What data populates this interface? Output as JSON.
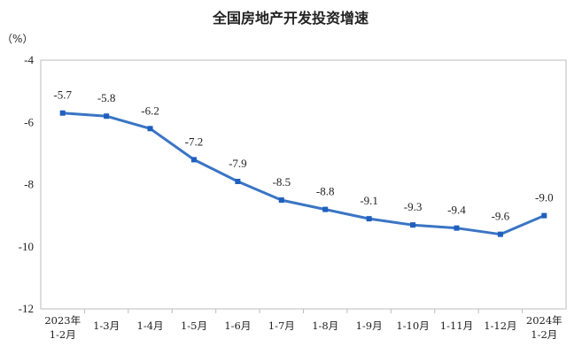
{
  "chart_data": {
    "type": "line",
    "title": "全国房地产开发投资增速",
    "unit_label": "（%）",
    "categories": [
      [
        "2023年",
        "1-2月"
      ],
      [
        "1-3月"
      ],
      [
        "1-4月"
      ],
      [
        "1-5月"
      ],
      [
        "1-6月"
      ],
      [
        "1-7月"
      ],
      [
        "1-8月"
      ],
      [
        "1-9月"
      ],
      [
        "1-10月"
      ],
      [
        "1-11月"
      ],
      [
        "1-12月"
      ],
      [
        "2024年",
        "1-2月"
      ]
    ],
    "values": [
      -5.7,
      -5.8,
      -6.2,
      -7.2,
      -7.9,
      -8.5,
      -8.8,
      -9.1,
      -9.3,
      -9.4,
      -9.6,
      -9.0
    ],
    "data_labels": [
      "-5.7",
      "-5.8",
      "-6.2",
      "-7.2",
      "-7.9",
      "-8.5",
      "-8.8",
      "-9.1",
      "-9.3",
      "-9.4",
      "-9.6",
      "-9.0"
    ],
    "ylim": [
      -12,
      -4
    ],
    "yticks": [
      -4,
      -6,
      -8,
      -10,
      -12
    ],
    "grid": false,
    "line_color": "#3a75c4",
    "marker_color": "#1f5fbf"
  }
}
